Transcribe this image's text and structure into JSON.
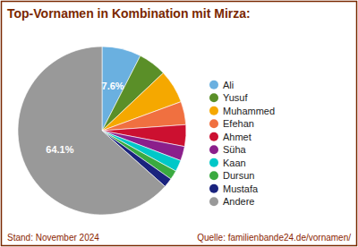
{
  "chart_data": {
    "type": "pie",
    "title": "Top-Vornamen in Kombination mit Mirza:",
    "categories": [
      "Ali",
      "Yusuf",
      "Muhammed",
      "Efehan",
      "Ahmet",
      "Süha",
      "Kaan",
      "Dursun",
      "Mustafa",
      "Andere"
    ],
    "values": [
      7.6,
      5.5,
      6.5,
      4.5,
      4.2,
      2.8,
      2.2,
      1.8,
      1.8,
      64.1
    ],
    "value_labels": [
      "7.6%",
      null,
      null,
      null,
      null,
      null,
      null,
      null,
      null,
      "64.1%"
    ],
    "data_labels": true,
    "colors": [
      "#6ab0e0",
      "#5a8f28",
      "#f5a800",
      "#f07040",
      "#cc1030",
      "#8b1f8b",
      "#00c8c8",
      "#3aaa40",
      "#1a237e",
      "#999999"
    ],
    "legend": "right",
    "annotations": [
      "Stand: November 2024",
      "Quelle: familienbande24.de/vornamen/"
    ]
  }
}
